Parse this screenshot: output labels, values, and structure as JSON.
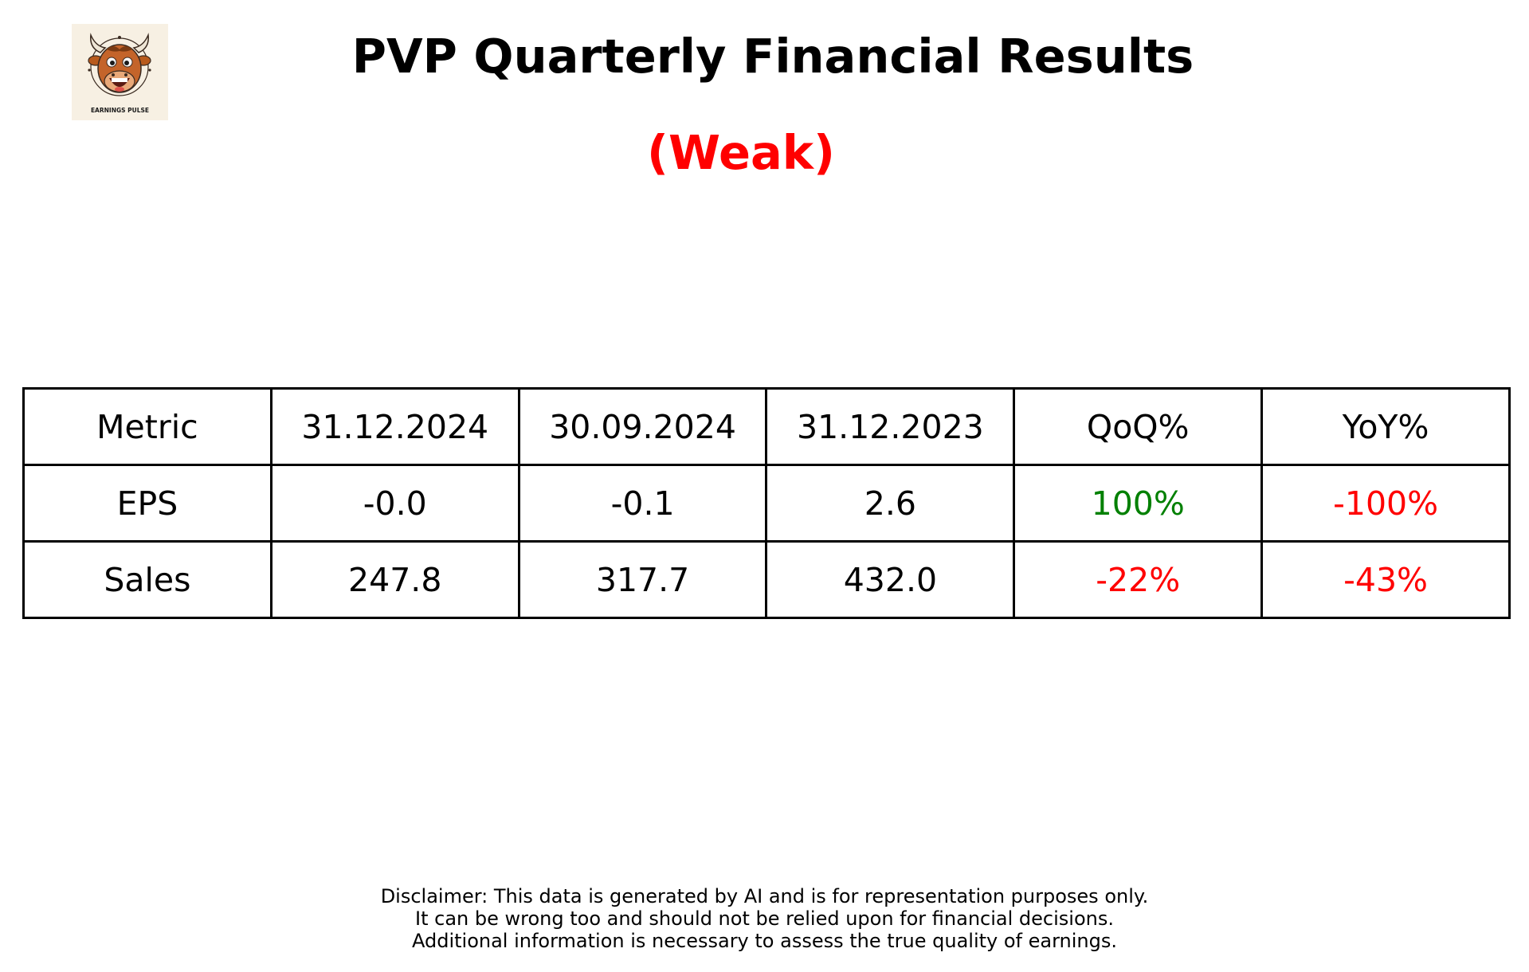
{
  "logo": {
    "icon": "bull-mascot-icon",
    "text": "EARNINGS PULSE",
    "background": "#f7f0e3"
  },
  "header": {
    "title": "PVP Quarterly Financial Results",
    "rating": "(Weak)",
    "rating_color": "#ff0000"
  },
  "table": {
    "columns": [
      "Metric",
      "31.12.2024",
      "30.09.2024",
      "31.12.2023",
      "QoQ%",
      "YoY%"
    ],
    "rows": [
      {
        "metric": "EPS",
        "q1": "-0.0",
        "q2": "-0.1",
        "q3": "2.6",
        "qoq": "100%",
        "yoy": "-100%",
        "qoq_color": "#008000",
        "yoy_color": "#ff0000"
      },
      {
        "metric": "Sales",
        "q1": "247.8",
        "q2": "317.7",
        "q3": "432.0",
        "qoq": "-22%",
        "yoy": "-43%",
        "qoq_color": "#ff0000",
        "yoy_color": "#ff0000"
      }
    ]
  },
  "disclaimer": {
    "lines": [
      "Disclaimer: This data is generated by AI and is for representation purposes only.",
      "It can be wrong too and should not be relied upon for financial decisions.",
      "Additional information is necessary to assess the true quality of earnings."
    ]
  }
}
